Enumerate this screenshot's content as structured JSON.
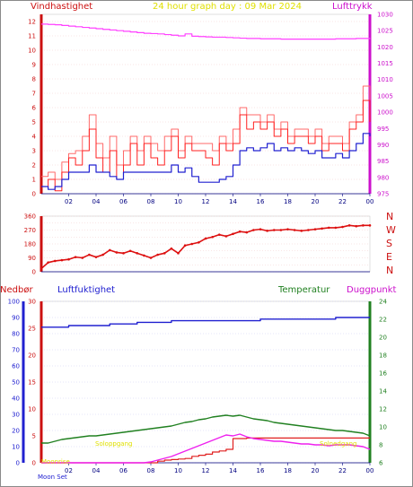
{
  "header": {
    "left_label": "Vindhastighet",
    "title": "24 hour graph day : 09 Mar 2024",
    "right_label": "Lufttrykk"
  },
  "direction_labels": [
    "N",
    "W",
    "S",
    "E",
    "N"
  ],
  "lower_header": {
    "left1": "Nedbør",
    "left2": "Luftfuktighet",
    "right1": "Temperatur",
    "right2": "Duggpunkt"
  },
  "annotations": {
    "moon_set": "Moon Set",
    "moonrise": "Moonrise",
    "sun_up": "Soloppgang",
    "sun_down": "Solnedgang"
  },
  "colors": {
    "wind": "#ff2020",
    "gust": "#ff6a6a",
    "avg_wind": "#2020d0",
    "pressure": "#ff40ff",
    "direction": "#dd1010",
    "humidity": "#2020d0",
    "temperature": "#208020",
    "dewpoint": "#ee20ee",
    "rain": "#e02020",
    "left_axis": "#cc1010",
    "right_axis": "#cc10cc",
    "title": "#e0e000"
  },
  "chart_data": [
    {
      "type": "line",
      "title": "24 hour graph day : 09 Mar 2024",
      "x_ticks": [
        "02",
        "04",
        "06",
        "08",
        "10",
        "12",
        "14",
        "16",
        "18",
        "20",
        "22",
        "00"
      ],
      "y_left_label": "Vindhastighet",
      "y_left_ticks": [
        0,
        1,
        2,
        3,
        4,
        5,
        6,
        7,
        8,
        9,
        10,
        11,
        12
      ],
      "y_right_label": "Lufttrykk",
      "y_right_ticks": [
        975,
        980,
        985,
        990,
        995,
        1000,
        1005,
        1010,
        1015,
        1020,
        1025,
        1030
      ],
      "ylim_left": [
        0,
        12.5
      ],
      "ylim_right": [
        975,
        1030
      ],
      "x_hours": [
        0,
        0.5,
        1,
        1.5,
        2,
        2.5,
        3,
        3.5,
        4,
        4.5,
        5,
        5.5,
        6,
        6.5,
        7,
        7.5,
        8,
        8.5,
        9,
        9.5,
        10,
        10.5,
        11,
        11.5,
        12,
        12.5,
        13,
        13.5,
        14,
        14.5,
        15,
        15.5,
        16,
        16.5,
        17,
        17.5,
        18,
        18.5,
        19,
        19.5,
        20,
        20.5,
        21,
        21.5,
        22,
        22.5,
        23,
        23.5,
        24
      ],
      "series": [
        {
          "name": "Vindhastighet",
          "color": "#ff2020",
          "values": [
            0.5,
            1.0,
            0.2,
            1.5,
            2.5,
            2.0,
            3.0,
            4.5,
            2.5,
            1.5,
            3.0,
            1.0,
            2.0,
            3.5,
            2.0,
            3.5,
            2.5,
            2.0,
            3.0,
            4.0,
            2.5,
            3.5,
            3.0,
            3.0,
            2.5,
            2.0,
            3.5,
            3.0,
            3.5,
            5.5,
            4.5,
            5.0,
            4.5,
            5.0,
            4.0,
            4.5,
            3.5,
            4.0,
            4.0,
            3.5,
            4.0,
            3.0,
            3.5,
            3.5,
            3.0,
            4.5,
            5.0,
            6.5,
            5.0
          ]
        },
        {
          "color": "#ff6a6a",
          "values": [
            1.2,
            1.5,
            1.0,
            2.2,
            2.8,
            3.0,
            4.0,
            5.5,
            3.5,
            2.5,
            4.0,
            2.0,
            3.0,
            4.0,
            3.0,
            4.0,
            3.5,
            3.0,
            4.0,
            4.5,
            3.0,
            4.0,
            3.5,
            3.5,
            3.5,
            3.0,
            4.0,
            3.5,
            4.5,
            6.0,
            5.5,
            5.5,
            5.0,
            5.5,
            4.5,
            5.0,
            4.0,
            4.5,
            4.5,
            4.0,
            4.5,
            3.5,
            4.0,
            4.0,
            3.5,
            5.0,
            5.5,
            7.5,
            6.0
          ]
        },
        {
          "color": "#2020d0",
          "values": [
            0.5,
            0.3,
            0.5,
            1.0,
            1.5,
            1.5,
            1.5,
            2.0,
            1.5,
            1.5,
            1.2,
            1.0,
            1.5,
            1.5,
            1.5,
            1.5,
            1.5,
            1.5,
            1.5,
            2.0,
            1.5,
            1.8,
            1.2,
            0.8,
            0.8,
            0.8,
            1.0,
            1.2,
            2.0,
            3.0,
            3.2,
            3.0,
            3.2,
            3.5,
            3.0,
            3.2,
            3.0,
            3.2,
            3.0,
            2.8,
            3.0,
            2.5,
            2.5,
            2.8,
            2.5,
            3.0,
            3.5,
            4.2,
            4.0
          ]
        },
        {
          "name": "Lufttrykk",
          "color": "#ff40ff",
          "values": [
            1027.0,
            1026.9,
            1026.8,
            1026.6,
            1026.4,
            1026.2,
            1026.0,
            1025.8,
            1025.6,
            1025.4,
            1025.2,
            1025.0,
            1024.8,
            1024.6,
            1024.4,
            1024.2,
            1024.1,
            1024.0,
            1023.8,
            1023.6,
            1023.4,
            1024.0,
            1023.3,
            1023.2,
            1023.1,
            1023.0,
            1023.0,
            1022.9,
            1022.8,
            1022.7,
            1022.6,
            1022.6,
            1022.5,
            1022.5,
            1022.5,
            1022.4,
            1022.4,
            1022.4,
            1022.4,
            1022.4,
            1022.4,
            1022.4,
            1022.4,
            1022.5,
            1022.5,
            1022.5,
            1022.6,
            1022.6,
            1022.7
          ]
        }
      ]
    },
    {
      "type": "scatter",
      "title": "",
      "y_ticks": [
        0,
        45,
        90,
        135,
        180,
        225,
        270,
        315,
        360
      ],
      "ylim": [
        0,
        360
      ],
      "x_hours": [
        0,
        0.5,
        1,
        1.5,
        2,
        2.5,
        3,
        3.5,
        4,
        4.5,
        5,
        5.5,
        6,
        6.5,
        7,
        7.5,
        8,
        8.5,
        9,
        9.5,
        10,
        10.5,
        11,
        11.5,
        12,
        12.5,
        13,
        13.5,
        14,
        14.5,
        15,
        15.5,
        16,
        16.5,
        17,
        17.5,
        18,
        18.5,
        19,
        19.5,
        20,
        20.5,
        21,
        21.5,
        22,
        22.5,
        23,
        23.5,
        24
      ],
      "series": [
        {
          "name": "direction",
          "color": "#dd1010",
          "values": [
            20,
            60,
            70,
            75,
            80,
            95,
            90,
            110,
            95,
            110,
            140,
            125,
            120,
            135,
            120,
            105,
            90,
            110,
            120,
            150,
            120,
            170,
            180,
            190,
            215,
            225,
            240,
            230,
            245,
            260,
            255,
            270,
            275,
            265,
            270,
            270,
            275,
            270,
            265,
            270,
            275,
            280,
            285,
            285,
            290,
            300,
            295,
            300,
            300
          ]
        }
      ]
    },
    {
      "type": "line",
      "title": "",
      "y_left_ticks": [
        0,
        5,
        10,
        15,
        20,
        25,
        30
      ],
      "y_left2_ticks": [
        0,
        10,
        20,
        30,
        40,
        50,
        60,
        70,
        80,
        90,
        100
      ],
      "y_right_ticks": [
        6,
        8,
        10,
        12,
        14,
        16,
        18,
        20,
        22,
        24
      ],
      "ylim_left": [
        0,
        30
      ],
      "ylim_left2": [
        0,
        100
      ],
      "ylim_right": [
        6,
        24
      ],
      "x_hours": [
        0,
        0.5,
        1,
        1.5,
        2,
        2.5,
        3,
        3.5,
        4,
        4.5,
        5,
        5.5,
        6,
        6.5,
        7,
        7.5,
        8,
        8.5,
        9,
        9.5,
        10,
        10.5,
        11,
        11.5,
        12,
        12.5,
        13,
        13.5,
        14,
        14.5,
        15,
        15.5,
        16,
        16.5,
        17,
        17.5,
        18,
        18.5,
        19,
        19.5,
        20,
        20.5,
        21,
        21.5,
        22,
        22.5,
        23,
        23.5,
        24
      ],
      "series": [
        {
          "name": "Luftfuktighet",
          "color": "#2020d0",
          "values": [
            84,
            84,
            84,
            84,
            85,
            85,
            85,
            85,
            85,
            85,
            86,
            86,
            86,
            86,
            87,
            87,
            87,
            87,
            87,
            88,
            88,
            88,
            88,
            88,
            88,
            88,
            88,
            88,
            88,
            88,
            88,
            88,
            89,
            89,
            89,
            89,
            89,
            89,
            89,
            89,
            89,
            89,
            89,
            90,
            90,
            90,
            90,
            90,
            90
          ]
        },
        {
          "name": "Temperatur",
          "color": "#208020",
          "values": [
            8.2,
            8.2,
            8.4,
            8.6,
            8.7,
            8.8,
            8.9,
            9.0,
            9.0,
            9.1,
            9.2,
            9.3,
            9.4,
            9.5,
            9.6,
            9.7,
            9.8,
            9.9,
            10.0,
            10.1,
            10.3,
            10.5,
            10.6,
            10.8,
            10.9,
            11.1,
            11.2,
            11.3,
            11.2,
            11.3,
            11.1,
            10.9,
            10.8,
            10.7,
            10.5,
            10.4,
            10.3,
            10.2,
            10.1,
            10.0,
            9.9,
            9.8,
            9.7,
            9.6,
            9.6,
            9.5,
            9.4,
            9.3,
            9.0
          ]
        },
        {
          "name": "Duggpunkt",
          "color": "#ee20ee",
          "values": [
            6.0,
            6.0,
            6.0,
            6.0,
            6.0,
            6.0,
            6.0,
            6.0,
            6.0,
            6.0,
            6.0,
            6.0,
            6.0,
            6.0,
            6.0,
            6.0,
            6.1,
            6.3,
            6.5,
            6.7,
            7.0,
            7.3,
            7.6,
            7.9,
            8.2,
            8.5,
            8.8,
            9.1,
            9.0,
            9.2,
            8.9,
            8.7,
            8.6,
            8.5,
            8.4,
            8.4,
            8.3,
            8.2,
            8.1,
            8.1,
            8.0,
            8.0,
            7.9,
            8.0,
            8.0,
            8.0,
            7.9,
            7.8,
            7.5
          ]
        },
        {
          "name": "Nedbør",
          "color": "#e02020",
          "values": [
            0,
            0,
            0,
            0,
            0,
            0,
            0,
            0,
            0,
            0,
            0,
            0,
            0,
            0,
            0,
            0,
            0,
            0.3,
            0.5,
            0.6,
            0.7,
            0.8,
            1.2,
            1.4,
            1.6,
            2.0,
            2.2,
            2.5,
            4.5,
            4.5,
            4.6,
            4.6,
            4.6,
            4.6,
            4.6,
            4.6,
            4.6,
            4.6,
            4.6,
            4.6,
            4.6,
            4.6,
            4.6,
            4.6,
            4.6,
            4.6,
            4.6,
            4.6,
            4.6
          ]
        }
      ]
    }
  ]
}
